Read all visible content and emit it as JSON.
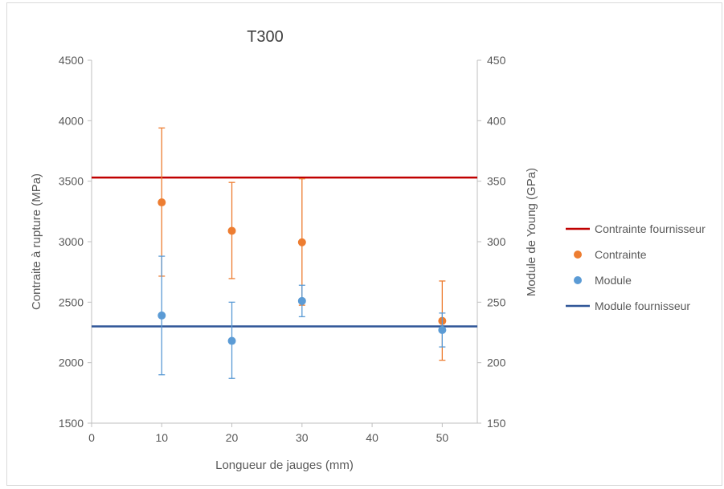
{
  "chart_data": {
    "type": "scatter",
    "title": "T300",
    "xlabel": "Longueur de jauges (mm)",
    "ylabel_left": "Contraite à rupture (MPa)",
    "ylabel_right": "Module de Young (GPa)",
    "xlim": [
      0,
      55
    ],
    "xticks": [
      "0",
      "10",
      "20",
      "30",
      "40",
      "50"
    ],
    "ylim_left": [
      1500,
      4500
    ],
    "yticks_left": [
      "1500",
      "2000",
      "2500",
      "3000",
      "3500",
      "4000",
      "4500"
    ],
    "ylim_right": [
      150,
      450
    ],
    "yticks_right": [
      "150",
      "200",
      "250",
      "300",
      "350",
      "400",
      "450"
    ],
    "grid": false,
    "legend_position": "right",
    "series": [
      {
        "name": "Contrainte fournisseur",
        "kind": "hline",
        "axis": "left",
        "value": 3530,
        "color": "#c00000"
      },
      {
        "name": "Contrainte",
        "kind": "points",
        "axis": "left",
        "color": "#ed7d31",
        "points": [
          {
            "x": 10,
            "y": 3325,
            "low": 2715,
            "high": 3940
          },
          {
            "x": 20,
            "y": 3090,
            "low": 2695,
            "high": 3490
          },
          {
            "x": 30,
            "y": 2995,
            "low": 2475,
            "high": 3520
          },
          {
            "x": 50,
            "y": 2345,
            "low": 2020,
            "high": 2675
          }
        ]
      },
      {
        "name": "Module",
        "kind": "points",
        "axis": "right",
        "color": "#5b9bd5",
        "points": [
          {
            "x": 10,
            "y": 239,
            "low": 190,
            "high": 288
          },
          {
            "x": 20,
            "y": 218,
            "low": 187,
            "high": 250
          },
          {
            "x": 30,
            "y": 251,
            "low": 238,
            "high": 264
          },
          {
            "x": 50,
            "y": 227,
            "low": 213,
            "high": 241
          }
        ]
      },
      {
        "name": "Module fournisseur",
        "kind": "hline",
        "axis": "right",
        "value": 230,
        "color": "#2f5597"
      }
    ]
  }
}
